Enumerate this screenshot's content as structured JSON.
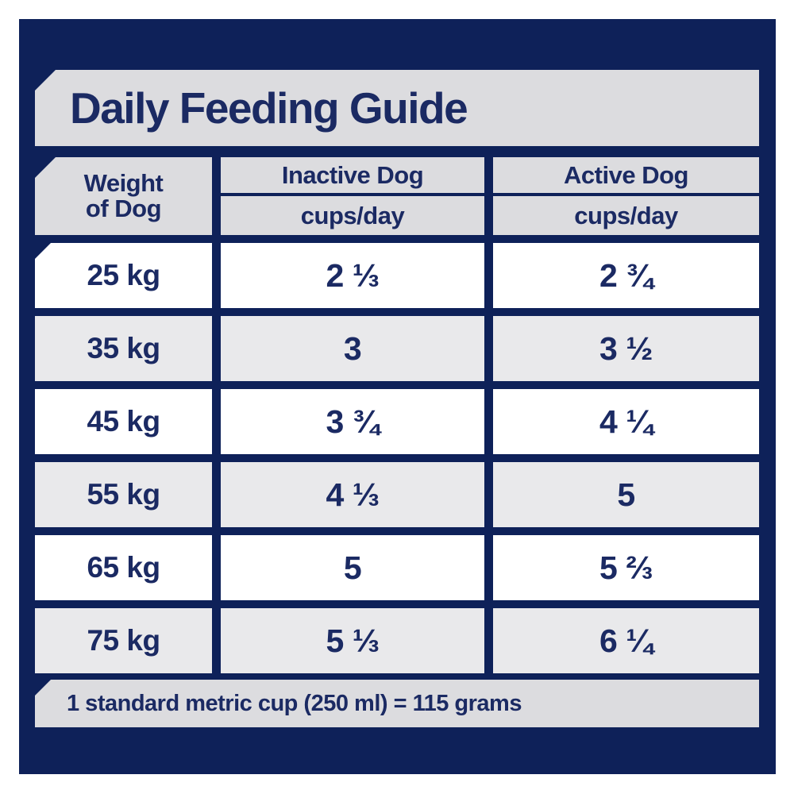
{
  "title": "Daily Feeding Guide",
  "colors": {
    "panel_navy": "#0e2159",
    "text_navy": "#1b2a63",
    "banner_gray": "#dcdcdf",
    "row_alt_gray": "#e9e9eb",
    "row_white": "#ffffff"
  },
  "table": {
    "weight_header": {
      "line1": "Weight",
      "line2": "of Dog"
    },
    "columns": [
      {
        "label": "Inactive Dog",
        "sub": "cups/day"
      },
      {
        "label": "Active Dog",
        "sub": "cups/day"
      }
    ],
    "rows": [
      {
        "weight": "25 kg",
        "inactive": "2 ⅓",
        "active": "2 ¾"
      },
      {
        "weight": "35 kg",
        "inactive": "3",
        "active": "3 ½"
      },
      {
        "weight": "45 kg",
        "inactive": "3 ¾",
        "active": "4 ¼"
      },
      {
        "weight": "55 kg",
        "inactive": "4 ⅓",
        "active": "5"
      },
      {
        "weight": "65 kg",
        "inactive": "5",
        "active": "5 ⅔"
      },
      {
        "weight": "75 kg",
        "inactive": "5 ⅓",
        "active": "6 ¼"
      }
    ]
  },
  "footnote": "1 standard metric cup (250 ml) = 115 grams"
}
